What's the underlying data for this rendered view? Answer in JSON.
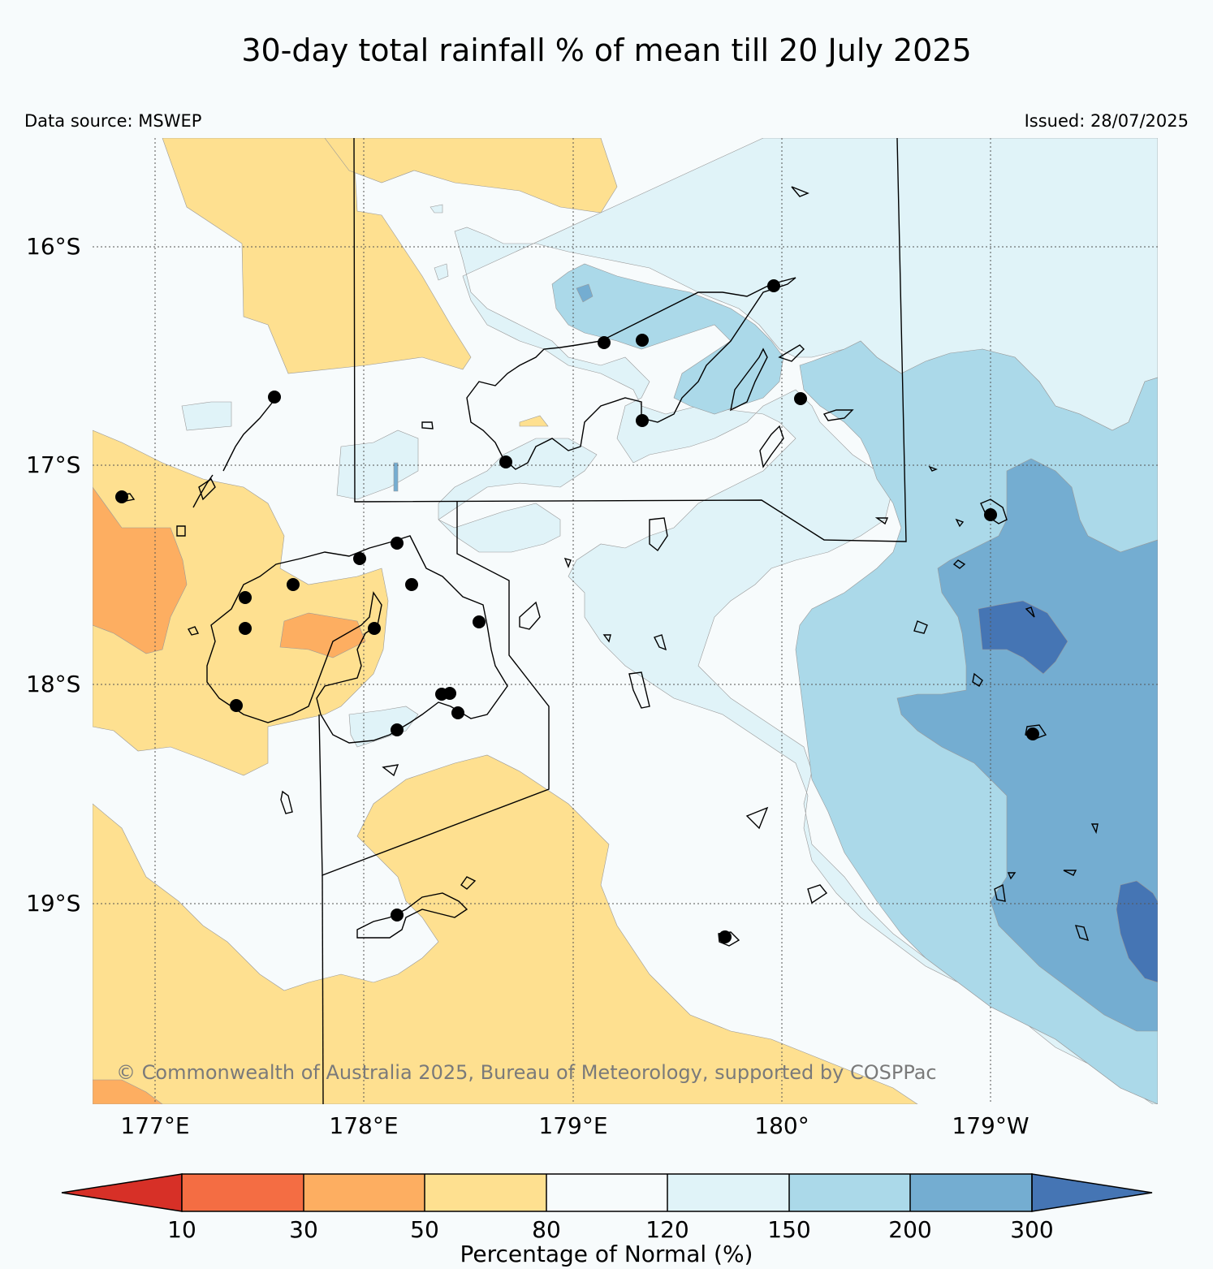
{
  "title": "30-day total rainfall % of mean till 20 July 2025",
  "data_source": "Data source: MSWEP",
  "issued": "Issued: 28/07/2025",
  "copyright": "© Commonwealth of Australia 2025, Bureau of Meteorology, supported by COSPPac",
  "lat_labels": [
    "16°S",
    "17°S",
    "18°S",
    "19°S"
  ],
  "lon_labels": [
    "177°E",
    "178°E",
    "179°E",
    "180°",
    "179°W"
  ],
  "legend": {
    "title": "Percentage of Normal (%)",
    "ticks": [
      "10",
      "30",
      "50",
      "80",
      "120",
      "150",
      "200",
      "300"
    ],
    "colors": {
      "lt10": "#d73027",
      "10_30": "#f46d43",
      "30_50": "#fdae61",
      "50_80": "#fee090",
      "80_120": "#f7fbfc",
      "120_150": "#e0f3f8",
      "150_200": "#abd9e9",
      "200_300": "#74add1",
      "gt300": "#4575b4"
    }
  }
}
